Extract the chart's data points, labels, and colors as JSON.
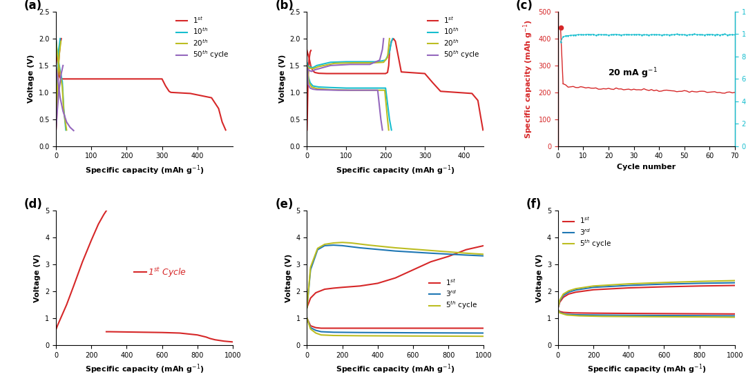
{
  "colors": {
    "red": "#d62728",
    "cyan": "#17becf",
    "blue": "#1f77b4",
    "gold": "#bcbd22",
    "purple": "#9467bd"
  },
  "panel_labels": [
    "(a)",
    "(b)",
    "(c)",
    "(d)",
    "(e)",
    "(f)"
  ]
}
